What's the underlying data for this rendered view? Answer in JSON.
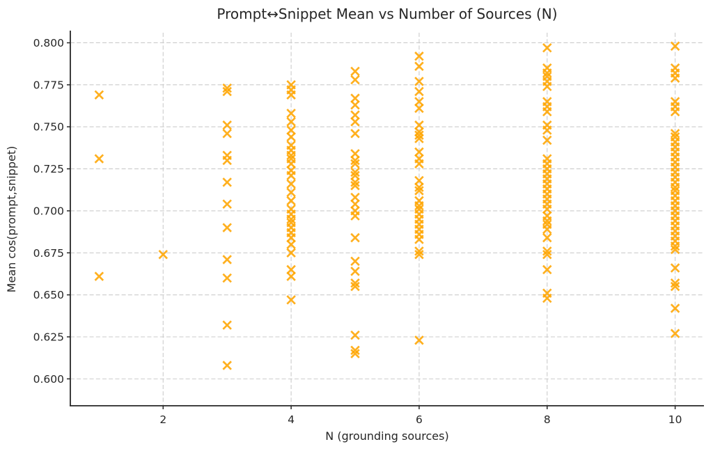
{
  "chart_data": {
    "type": "scatter",
    "title": "Prompt↔Snippet Mean vs Number of Sources (N)",
    "xlabel": "N (grounding sources)",
    "ylabel": "Mean cos(prompt,snippet)",
    "marker": "x",
    "marker_color": "#FFA500",
    "grid": true,
    "grid_color": "#cbcbcb",
    "axis_color": "#262626",
    "text_color": "#262626",
    "xlim": [
      0.55,
      10.45
    ],
    "ylim": [
      0.584,
      0.806
    ],
    "xticks": [
      2,
      4,
      6,
      8,
      10
    ],
    "yticks": [
      0.6,
      0.625,
      0.65,
      0.675,
      0.7,
      0.725,
      0.75,
      0.775,
      0.8
    ],
    "ytick_labels": [
      "0.600",
      "0.625",
      "0.650",
      "0.675",
      "0.700",
      "0.725",
      "0.750",
      "0.775",
      "0.800"
    ],
    "xtick_labels": [
      "2",
      "4",
      "6",
      "8",
      "10"
    ],
    "legend": null,
    "points": [
      {
        "n": 1,
        "means": [
          0.769,
          0.731,
          0.661
        ]
      },
      {
        "n": 2,
        "means": [
          0.674
        ]
      },
      {
        "n": 3,
        "means": [
          0.773,
          0.771,
          0.751,
          0.746,
          0.733,
          0.73,
          0.717,
          0.704,
          0.69,
          0.671,
          0.66,
          0.632,
          0.608
        ]
      },
      {
        "n": 4,
        "means": [
          0.775,
          0.772,
          0.769,
          0.758,
          0.753,
          0.748,
          0.744,
          0.739,
          0.736,
          0.733,
          0.731,
          0.728,
          0.724,
          0.721,
          0.716,
          0.711,
          0.706,
          0.701,
          0.698,
          0.695,
          0.693,
          0.69,
          0.687,
          0.684,
          0.68,
          0.675,
          0.665,
          0.661,
          0.647
        ]
      },
      {
        "n": 5,
        "means": [
          0.783,
          0.778,
          0.767,
          0.763,
          0.757,
          0.753,
          0.746,
          0.734,
          0.73,
          0.728,
          0.723,
          0.721,
          0.717,
          0.715,
          0.708,
          0.704,
          0.7,
          0.697,
          0.684,
          0.67,
          0.664,
          0.657,
          0.655,
          0.626,
          0.617,
          0.615
        ]
      },
      {
        "n": 6,
        "means": [
          0.792,
          0.786,
          0.777,
          0.771,
          0.765,
          0.761,
          0.751,
          0.747,
          0.745,
          0.743,
          0.735,
          0.731,
          0.728,
          0.718,
          0.714,
          0.712,
          0.706,
          0.703,
          0.701,
          0.698,
          0.695,
          0.692,
          0.689,
          0.686,
          0.683,
          0.676,
          0.674,
          0.623
        ]
      },
      {
        "n": 8,
        "means": [
          0.797,
          0.785,
          0.782,
          0.78,
          0.777,
          0.774,
          0.765,
          0.762,
          0.759,
          0.751,
          0.748,
          0.742,
          0.731,
          0.728,
          0.725,
          0.722,
          0.719,
          0.716,
          0.713,
          0.71,
          0.707,
          0.704,
          0.701,
          0.697,
          0.694,
          0.692,
          0.689,
          0.684,
          0.676,
          0.674,
          0.665,
          0.651,
          0.648
        ]
      },
      {
        "n": 10,
        "means": [
          0.798,
          0.785,
          0.782,
          0.779,
          0.765,
          0.762,
          0.759,
          0.746,
          0.744,
          0.741,
          0.738,
          0.735,
          0.732,
          0.729,
          0.726,
          0.723,
          0.72,
          0.717,
          0.714,
          0.712,
          0.709,
          0.706,
          0.703,
          0.7,
          0.697,
          0.694,
          0.691,
          0.688,
          0.685,
          0.682,
          0.679,
          0.677,
          0.666,
          0.657,
          0.655,
          0.642,
          0.627
        ]
      }
    ]
  }
}
